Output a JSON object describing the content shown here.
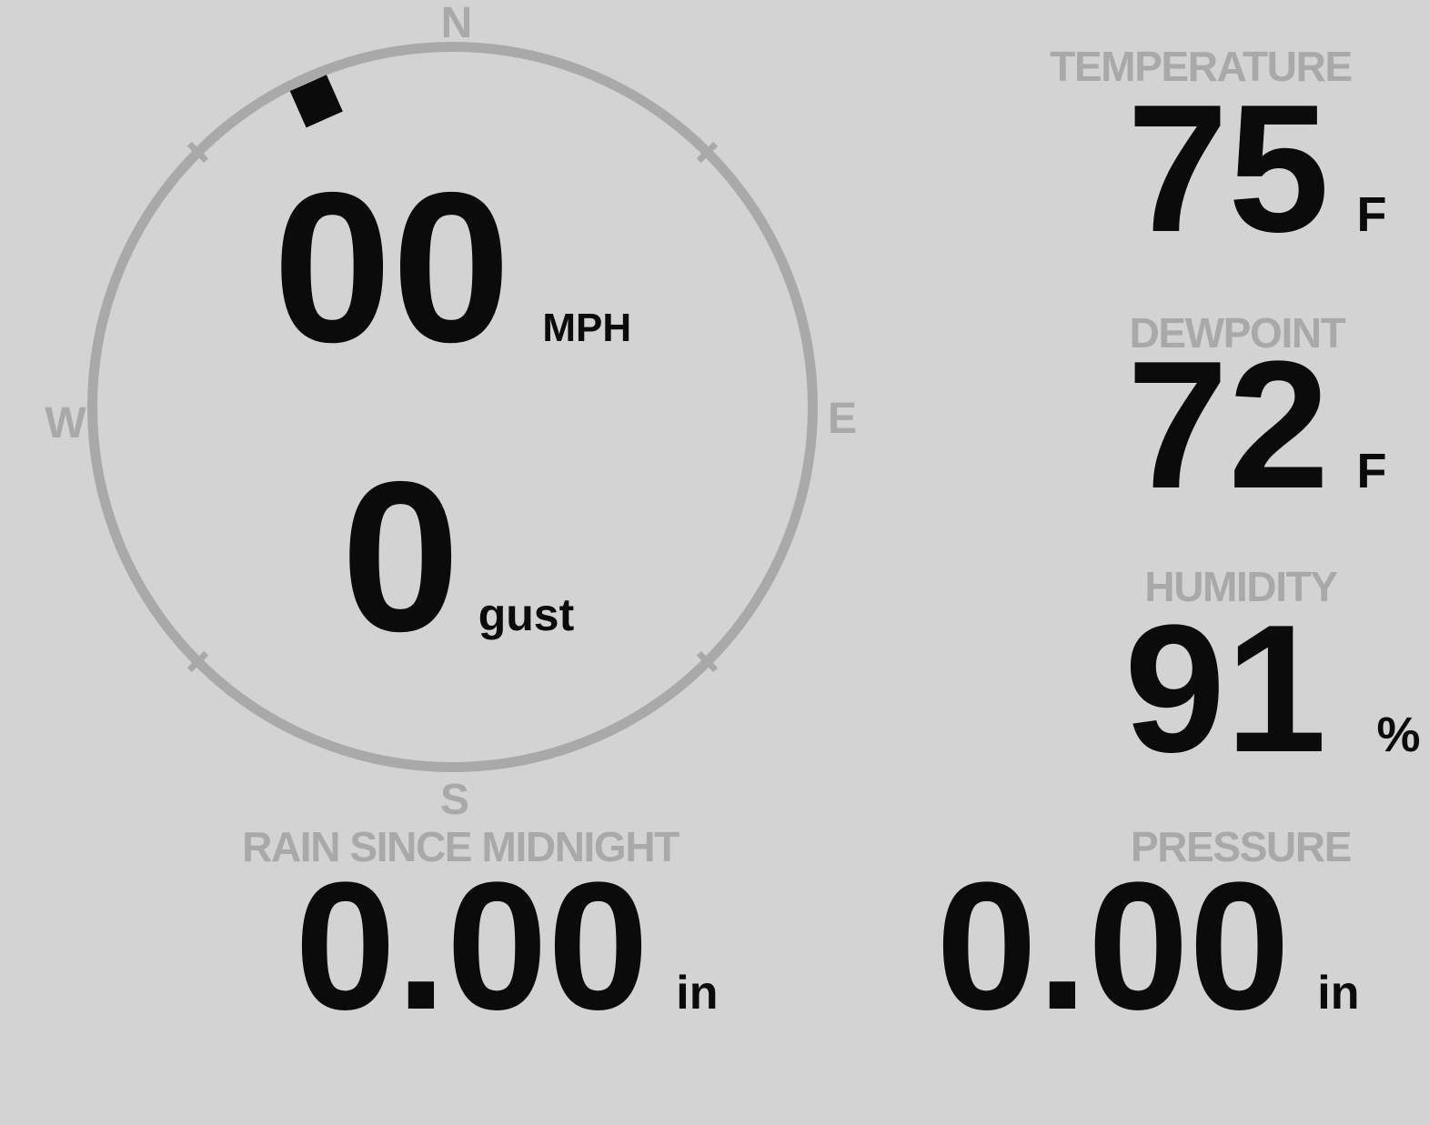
{
  "colors": {
    "background": "#d3d3d3",
    "muted": "#a9a9a9",
    "value": "#0b0b0b"
  },
  "wind_gauge": {
    "compass": {
      "north": "N",
      "east": "E",
      "south": "S",
      "west": "W"
    },
    "direction_degrees": 336,
    "speed": {
      "value": "00",
      "unit": "MPH"
    },
    "gust": {
      "value": "0",
      "unit": "gust"
    }
  },
  "metrics": {
    "temperature": {
      "label": "TEMPERATURE",
      "value": "75",
      "unit": "F"
    },
    "dewpoint": {
      "label": "DEWPOINT",
      "value": "72",
      "unit": "F"
    },
    "humidity": {
      "label": "HUMIDITY",
      "value": "91",
      "unit": "%"
    },
    "rain_since_midnight": {
      "label": "RAIN SINCE MIDNIGHT",
      "value": "0.00",
      "unit": "in"
    },
    "pressure": {
      "label": "PRESSURE",
      "value": "0.00",
      "unit": "in"
    }
  }
}
